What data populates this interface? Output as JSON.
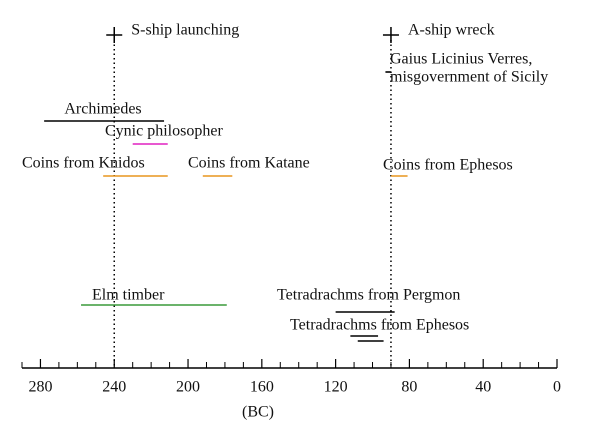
{
  "chart_data": {
    "type": "timeline",
    "xlabel": "(BC)",
    "xlim": [
      290,
      0
    ],
    "xticks": [
      280,
      240,
      200,
      160,
      120,
      80,
      40,
      0
    ],
    "xminor": [
      290,
      270,
      260,
      250,
      230,
      220,
      210,
      190,
      180,
      170,
      150,
      140,
      130,
      110,
      100,
      90,
      70,
      60,
      50,
      30,
      20,
      10
    ],
    "markers": [
      {
        "label": "S-ship launching",
        "value": 240
      },
      {
        "label": "A-ship wreck",
        "value": 90
      }
    ],
    "events": [
      {
        "label": [
          "Gaius Licinius Verres,",
          "misgovernment of Sicily"
        ],
        "color": "#000000",
        "segments": [
          [
            93,
            90
          ]
        ]
      },
      {
        "label": [
          "Archimedes"
        ],
        "color": "#000000",
        "segments": [
          [
            278,
            213
          ]
        ]
      },
      {
        "label": [
          "Cynic philosopher"
        ],
        "color": "#e020c0",
        "segments": [
          [
            230,
            211
          ]
        ]
      },
      {
        "label": [
          "Coins from Knidos"
        ],
        "color": "#e8961e",
        "segments": [
          [
            246,
            211
          ]
        ]
      },
      {
        "label": [
          "Coins from Katane"
        ],
        "color": "#e8961e",
        "segments": [
          [
            192,
            176
          ]
        ]
      },
      {
        "label": [
          "Coins from Ephesos"
        ],
        "color": "#e8961e",
        "segments": [
          [
            90,
            81
          ]
        ]
      },
      {
        "label": [
          "Elm timber"
        ],
        "color": "#3a9a3a",
        "segments": [
          [
            258,
            179
          ]
        ]
      },
      {
        "label": [
          "Tetradrachms from Pergmon"
        ],
        "color": "#000000",
        "segments": [
          [
            120,
            88
          ]
        ]
      },
      {
        "label": [
          "Tetradrachms from Ephesos"
        ],
        "color": "#000000",
        "segments": [
          [
            112,
            97
          ],
          [
            108,
            94
          ]
        ]
      }
    ]
  }
}
